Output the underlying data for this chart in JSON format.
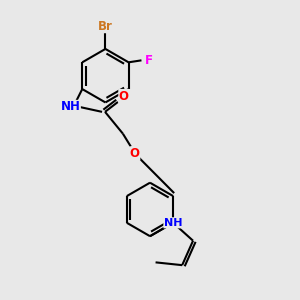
{
  "background_color": "#e8e8e8",
  "bond_color": "#000000",
  "atom_colors": {
    "Br": "#cc7722",
    "F": "#ff00ff",
    "N": "#0000ff",
    "O": "#ff0000"
  },
  "figsize": [
    3.0,
    3.0
  ],
  "dpi": 100
}
